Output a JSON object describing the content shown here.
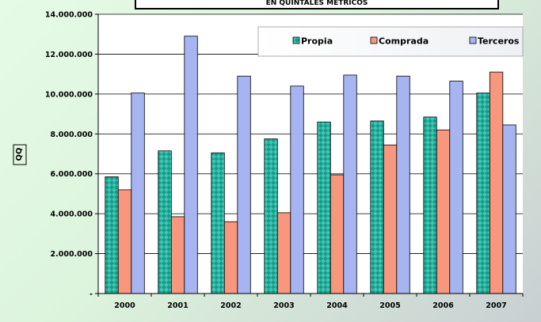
{
  "chart_data": {
    "type": "bar",
    "title": "EN QUINTALES METRICOS",
    "ylabel": "QQ",
    "xlabel": "",
    "categories": [
      "2000",
      "2001",
      "2002",
      "2003",
      "2004",
      "2005",
      "2006",
      "2007"
    ],
    "series": [
      {
        "name": "Propia",
        "color": "#20b2a0",
        "pattern": "diamond-hatch",
        "values": [
          5850000,
          7150000,
          7050000,
          7750000,
          8600000,
          8650000,
          8850000,
          10050000
        ]
      },
      {
        "name": "Comprada",
        "color": "#f7977e",
        "pattern": "solid",
        "values": [
          5200000,
          3850000,
          3600000,
          4050000,
          5950000,
          7450000,
          8200000,
          11100000
        ]
      },
      {
        "name": "Terceros",
        "color": "#a6b4f2",
        "pattern": "solid",
        "values": [
          10050000,
          12900000,
          10900000,
          10400000,
          10950000,
          10900000,
          10650000,
          8450000
        ]
      }
    ],
    "ylim": [
      0,
      14000000
    ],
    "yticks": [
      "-",
      "2.000.000",
      "4.000.000",
      "6.000.000",
      "8.000.000",
      "10.000.000",
      "12.000.000",
      "14.000.000"
    ],
    "grid": true,
    "legend": "top-right"
  }
}
